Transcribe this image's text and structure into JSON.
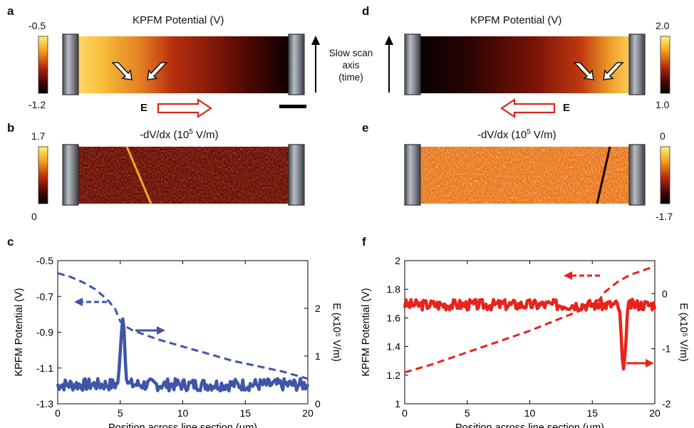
{
  "panels": {
    "a": {
      "label": "a",
      "title": "KPFM Potential (V)",
      "cb_max": "-0.5",
      "cb_min": "-1.2",
      "e_label": "E"
    },
    "b": {
      "label": "b",
      "title": "-dV/dx (10",
      "title_sup": "5",
      "title_end": " V/m)",
      "cb_max": "1.7",
      "cb_min": "0"
    },
    "d": {
      "label": "d",
      "title": "KPFM Potential (V)",
      "cb_max": "2.0",
      "cb_min": "1.0",
      "e_label": "E"
    },
    "e": {
      "label": "e",
      "title": "-dV/dx (10",
      "title_sup": "5",
      "title_end": " V/m)",
      "cb_max": "0",
      "cb_min": "-1.7"
    },
    "c": {
      "label": "c"
    },
    "f": {
      "label": "f"
    }
  },
  "slow_scan": [
    "Slow scan",
    "axis",
    "(time)"
  ],
  "colors": {
    "blue": "#3f55a8",
    "red": "#e8231c",
    "arrow_red": "#d9261c"
  },
  "chart_data": [
    {
      "panel": "c",
      "type": "line",
      "xlabel": "Position across line section (μm)",
      "ylabel": "KPFM Potential (V)",
      "y2label": "E (x10⁵ V/m)",
      "xlim": [
        0,
        20
      ],
      "ylim": [
        -1.3,
        -0.5
      ],
      "y2lim": [
        0,
        3
      ],
      "xticks": [
        "0",
        "5",
        "10",
        "15",
        "20"
      ],
      "yticks": [
        "-1.3",
        "-1.1",
        "-0.9",
        "-0.7",
        "-0.5"
      ],
      "y2ticks": [
        "0",
        "1",
        "2"
      ],
      "series": [
        {
          "axis": "left",
          "style": "dashed",
          "color": "#3f55a8",
          "x": [
            0,
            1,
            2,
            3,
            4,
            4.6,
            5,
            5.5,
            6,
            8,
            10,
            12,
            14,
            16,
            18,
            19,
            20
          ],
          "y": [
            -0.57,
            -0.59,
            -0.62,
            -0.66,
            -0.72,
            -0.77,
            -0.84,
            -0.87,
            -0.89,
            -0.94,
            -0.98,
            -1.02,
            -1.06,
            -1.09,
            -1.12,
            -1.14,
            -1.16
          ]
        },
        {
          "axis": "right",
          "style": "solid",
          "color": "#3f55a8",
          "baseline": 0.4,
          "noise": 0.13,
          "seed": 7,
          "peaks": [
            {
              "x": 5.2,
              "h": 1.45,
              "w": 0.22
            }
          ]
        }
      ]
    },
    {
      "panel": "f",
      "type": "line",
      "xlabel": "Position across line section (μm)",
      "ylabel": "KPFM Potential (V)",
      "y2label": "E (x10⁵ V/m)",
      "xlim": [
        0,
        20
      ],
      "ylim": [
        1,
        2
      ],
      "y2lim": [
        -2,
        0.6
      ],
      "xticks": [
        "0",
        "5",
        "10",
        "15",
        "20"
      ],
      "yticks": [
        "1",
        "1.2",
        "1.4",
        "1.6",
        "1.8",
        "2"
      ],
      "y2ticks": [
        "-2",
        "-1",
        "0"
      ],
      "series": [
        {
          "axis": "left",
          "style": "dashed",
          "color": "#e8231c",
          "x": [
            0,
            2,
            4,
            6,
            8,
            10,
            12,
            14,
            15,
            15.6,
            16,
            17,
            18,
            19,
            20
          ],
          "y": [
            1.22,
            1.27,
            1.33,
            1.39,
            1.45,
            1.51,
            1.58,
            1.65,
            1.7,
            1.73,
            1.78,
            1.85,
            1.9,
            1.93,
            1.96
          ]
        },
        {
          "axis": "right",
          "style": "solid",
          "color": "#e8231c",
          "baseline": -0.2,
          "noise": 0.1,
          "seed": 3,
          "peaks": [
            {
              "x": 17.5,
              "h": -1.25,
              "w": 0.22
            }
          ]
        }
      ]
    }
  ]
}
